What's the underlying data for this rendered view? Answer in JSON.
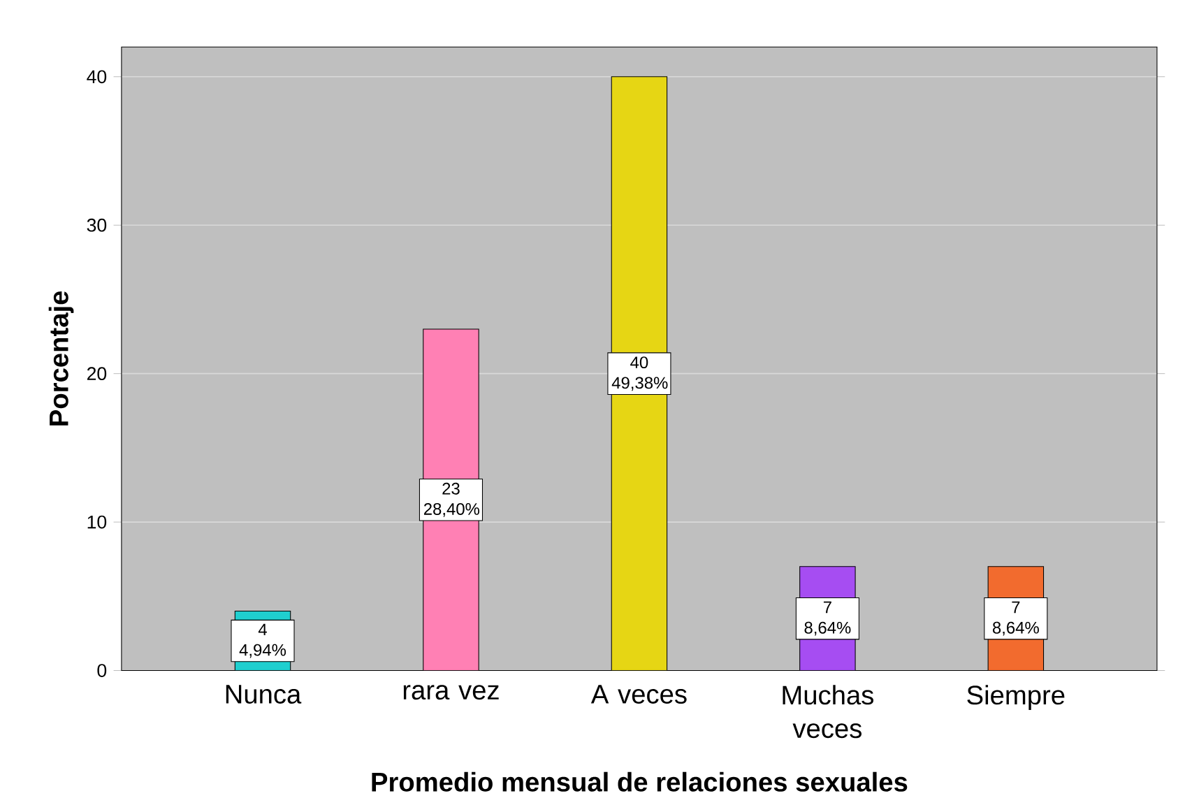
{
  "chart_data": {
    "type": "bar",
    "xlabel": "Promedio mensual de relaciones sexuales",
    "ylabel": "Porcentaje",
    "categories": [
      "Nunca",
      "rara vez",
      "A veces",
      "Muchas veces",
      "Siempre"
    ],
    "values": [
      4,
      23,
      40,
      7,
      7
    ],
    "colors": [
      "#1fcfcf",
      "#ff80b4",
      "#e6d614",
      "#a64df2",
      "#f26b2e"
    ],
    "value_labels": [
      "4 4,94%",
      "23 28,40%",
      "40 49,38%",
      "7 8,64%",
      "7 8,64%"
    ],
    "ylim": [
      0,
      42
    ],
    "yticks": [
      0,
      10,
      20,
      30,
      40
    ],
    "grid": "y"
  }
}
